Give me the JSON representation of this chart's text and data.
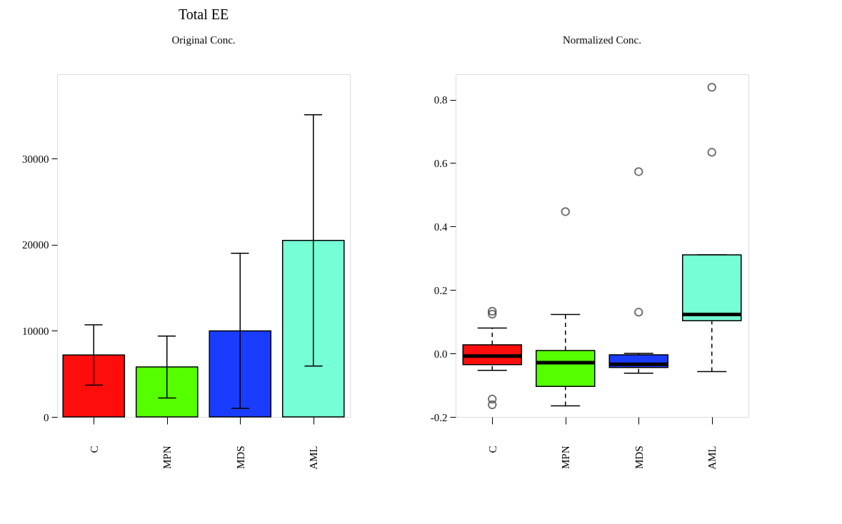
{
  "chart_data": [
    {
      "type": "bar",
      "title": "Total EE",
      "subtitle": "Original Conc.",
      "categories": [
        "C",
        "MPN",
        "MDS",
        "AML"
      ],
      "values": [
        7200,
        5800,
        10000,
        20500
      ],
      "errors": [
        3500,
        3600,
        9000,
        14600
      ],
      "colors": [
        "#fe0d0d",
        "#55ff00",
        "#1a3cff",
        "#76ffd4"
      ],
      "ylim": [
        0,
        39800
      ],
      "yticks": [
        0,
        10000,
        20000,
        30000
      ],
      "grid": false,
      "legend": false
    },
    {
      "type": "box",
      "title": "Normalized Conc.",
      "categories": [
        "C",
        "MPN",
        "MDS",
        "AML"
      ],
      "colors": [
        "#fe0d0d",
        "#55ff00",
        "#1a3cff",
        "#76ffd4"
      ],
      "ylim": [
        -0.2,
        0.88
      ],
      "yticks": [
        {
          "value": -0.2,
          "label": "-0.2"
        },
        {
          "value": 0,
          "label": "0.0"
        },
        0.2,
        0.4,
        0.6,
        0.8
      ],
      "grid": false,
      "legend": false,
      "boxes": [
        {
          "low": -0.053,
          "q1": -0.035,
          "median": -0.008,
          "q3": 0.027,
          "high": 0.08,
          "outliers": [
            0.133,
            0.124,
            -0.144,
            -0.162
          ]
        },
        {
          "low": -0.165,
          "q1": -0.104,
          "median": -0.029,
          "q3": 0.009,
          "high": 0.123,
          "outliers": [
            0.447
          ]
        },
        {
          "low": -0.062,
          "q1": -0.044,
          "median": -0.034,
          "q3": -0.004,
          "high": 0.0,
          "outliers": [
            0.573,
            0.13
          ]
        },
        {
          "low": -0.057,
          "q1": 0.103,
          "median": 0.123,
          "q3": 0.311,
          "high": 0.311,
          "outliers": [
            0.634,
            0.839
          ]
        }
      ]
    }
  ]
}
